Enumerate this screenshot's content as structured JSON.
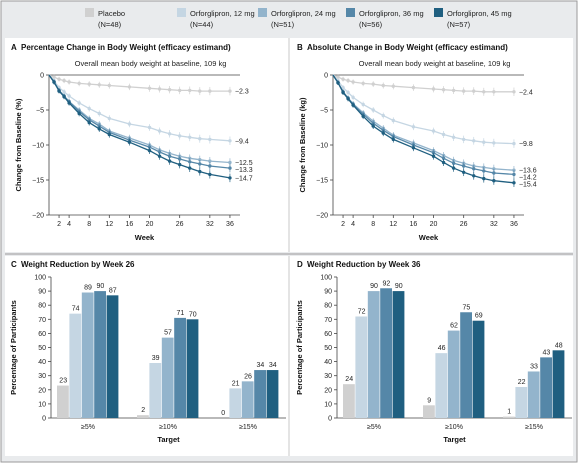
{
  "colors": {
    "placebo": "#d0d0d0",
    "d12": "#c5d6e3",
    "d24": "#93b4cc",
    "d36": "#5587a8",
    "d45": "#1f5f80",
    "panel_bg": "#e9ebed",
    "border": "#9a9a9a"
  },
  "legend": [
    {
      "key": "placebo",
      "name": "Placebo",
      "n": "(N=48)"
    },
    {
      "key": "d12",
      "name": "Orforglipron, 12 mg",
      "n": "(N=44)"
    },
    {
      "key": "d24",
      "name": "Orforglipron, 24 mg",
      "n": "(N=51)"
    },
    {
      "key": "d36",
      "name": "Orforglipron, 36 mg",
      "n": "(N=56)"
    },
    {
      "key": "d45",
      "name": "Orforglipron, 45 mg",
      "n": "(N=57)"
    }
  ],
  "chart_data": [
    {
      "panel": "A",
      "type": "line",
      "title": "Percentage Change in Body Weight (efficacy estimand)",
      "subtitle": "Overall mean body weight at baseline, 109 kg",
      "xlabel": "Week",
      "ylabel": "Change from Baseline (%)",
      "xticks": [
        2,
        4,
        8,
        12,
        16,
        20,
        26,
        32,
        36
      ],
      "yticks": [
        0,
        -5,
        -10,
        -15,
        -20
      ],
      "xlim": [
        0,
        38
      ],
      "ylim": [
        -20,
        0
      ],
      "x": [
        0,
        1,
        2,
        3,
        4,
        6,
        8,
        10,
        12,
        16,
        20,
        22,
        24,
        26,
        28,
        30,
        32,
        36
      ],
      "series": [
        {
          "key": "placebo",
          "values": [
            0,
            -0.3,
            -0.6,
            -0.8,
            -1.0,
            -1.2,
            -1.3,
            -1.4,
            -1.5,
            -1.7,
            -1.9,
            -2.0,
            -2.1,
            -2.2,
            -2.2,
            -2.3,
            -2.3,
            -2.3
          ],
          "end_label": "−2.3"
        },
        {
          "key": "d12",
          "values": [
            0,
            -0.8,
            -1.8,
            -2.4,
            -3.0,
            -4.0,
            -4.8,
            -5.5,
            -6.2,
            -7.0,
            -7.5,
            -8.0,
            -8.4,
            -8.7,
            -8.9,
            -9.1,
            -9.2,
            -9.4
          ],
          "end_label": "−9.4"
        },
        {
          "key": "d24",
          "values": [
            0,
            -1.0,
            -2.2,
            -3.0,
            -3.8,
            -5.0,
            -6.2,
            -7.0,
            -8.0,
            -9.0,
            -10.0,
            -10.7,
            -11.2,
            -11.6,
            -11.9,
            -12.1,
            -12.3,
            -12.5
          ],
          "end_label": "−12.5"
        },
        {
          "key": "d36",
          "values": [
            0,
            -1.0,
            -2.2,
            -3.0,
            -3.8,
            -5.2,
            -6.4,
            -7.3,
            -8.2,
            -9.3,
            -10.3,
            -11.0,
            -11.6,
            -12.0,
            -12.4,
            -12.7,
            -13.0,
            -13.3
          ],
          "end_label": "−13.3"
        },
        {
          "key": "d45",
          "values": [
            0,
            -1.0,
            -2.3,
            -3.1,
            -4.0,
            -5.5,
            -6.8,
            -7.7,
            -8.5,
            -9.6,
            -10.8,
            -11.6,
            -12.3,
            -12.8,
            -13.3,
            -13.8,
            -14.2,
            -14.7
          ],
          "end_label": "−14.7"
        }
      ]
    },
    {
      "panel": "B",
      "type": "line",
      "title": "Absolute Change in Body Weight (efficacy estimand)",
      "subtitle": "Overall mean body weight at baseline, 109 kg",
      "xlabel": "Week",
      "ylabel": "Change from Baseline (kg)",
      "xticks": [
        2,
        4,
        8,
        12,
        16,
        20,
        26,
        32,
        36
      ],
      "yticks": [
        0,
        -5,
        -10,
        -15,
        -20
      ],
      "xlim": [
        0,
        38
      ],
      "ylim": [
        -20,
        0
      ],
      "x": [
        0,
        1,
        2,
        3,
        4,
        6,
        8,
        10,
        12,
        16,
        20,
        22,
        24,
        26,
        28,
        30,
        32,
        36
      ],
      "series": [
        {
          "key": "placebo",
          "values": [
            0,
            -0.3,
            -0.6,
            -0.8,
            -1.0,
            -1.2,
            -1.3,
            -1.5,
            -1.6,
            -1.8,
            -2.0,
            -2.1,
            -2.2,
            -2.3,
            -2.3,
            -2.4,
            -2.4,
            -2.4
          ],
          "end_label": "−2.4"
        },
        {
          "key": "d12",
          "values": [
            0,
            -0.8,
            -1.8,
            -2.5,
            -3.2,
            -4.2,
            -5.0,
            -5.8,
            -6.5,
            -7.4,
            -8.0,
            -8.5,
            -8.9,
            -9.2,
            -9.4,
            -9.6,
            -9.7,
            -9.8
          ],
          "end_label": "−9.8"
        },
        {
          "key": "d24",
          "values": [
            0,
            -1.1,
            -2.4,
            -3.3,
            -4.1,
            -5.4,
            -6.6,
            -7.6,
            -8.6,
            -9.7,
            -10.8,
            -11.5,
            -12.2,
            -12.6,
            -13.0,
            -13.2,
            -13.4,
            -13.6
          ],
          "end_label": "−13.6"
        },
        {
          "key": "d36",
          "values": [
            0,
            -1.1,
            -2.4,
            -3.3,
            -4.2,
            -5.6,
            -6.9,
            -7.9,
            -8.8,
            -10.0,
            -11.1,
            -11.9,
            -12.6,
            -13.0,
            -13.4,
            -13.7,
            -14.0,
            -14.2
          ],
          "end_label": "−14.2"
        },
        {
          "key": "d45",
          "values": [
            0,
            -1.1,
            -2.5,
            -3.4,
            -4.3,
            -5.9,
            -7.3,
            -8.3,
            -9.2,
            -10.4,
            -11.6,
            -12.5,
            -13.3,
            -13.9,
            -14.4,
            -14.8,
            -15.1,
            -15.4
          ],
          "end_label": "−15.4"
        }
      ]
    },
    {
      "panel": "C",
      "type": "bar",
      "title": "Weight Reduction by Week 26",
      "xlabel": "Target",
      "ylabel": "Percentage of Participants",
      "ylim": [
        0,
        100
      ],
      "yticks": [
        0,
        10,
        20,
        30,
        40,
        50,
        60,
        70,
        80,
        90,
        100
      ],
      "categories": [
        "≥5%",
        "≥10%",
        "≥15%"
      ],
      "series": [
        {
          "key": "placebo",
          "values": [
            23,
            2,
            0
          ]
        },
        {
          "key": "d12",
          "values": [
            74,
            39,
            21
          ]
        },
        {
          "key": "d24",
          "values": [
            89,
            57,
            26
          ]
        },
        {
          "key": "d36",
          "values": [
            90,
            71,
            34
          ]
        },
        {
          "key": "d45",
          "values": [
            87,
            70,
            34
          ]
        }
      ]
    },
    {
      "panel": "D",
      "type": "bar",
      "title": "Weight Reduction by Week 36",
      "xlabel": "Target",
      "ylabel": "Percentage of Participants",
      "ylim": [
        0,
        100
      ],
      "yticks": [
        0,
        10,
        20,
        30,
        40,
        50,
        60,
        70,
        80,
        90,
        100
      ],
      "categories": [
        "≥5%",
        "≥10%",
        "≥15%"
      ],
      "series": [
        {
          "key": "placebo",
          "values": [
            24,
            9,
            1
          ]
        },
        {
          "key": "d12",
          "values": [
            72,
            46,
            22
          ]
        },
        {
          "key": "d24",
          "values": [
            90,
            62,
            33
          ]
        },
        {
          "key": "d36",
          "values": [
            92,
            75,
            43
          ]
        },
        {
          "key": "d45",
          "values": [
            90,
            69,
            48
          ]
        }
      ]
    }
  ]
}
